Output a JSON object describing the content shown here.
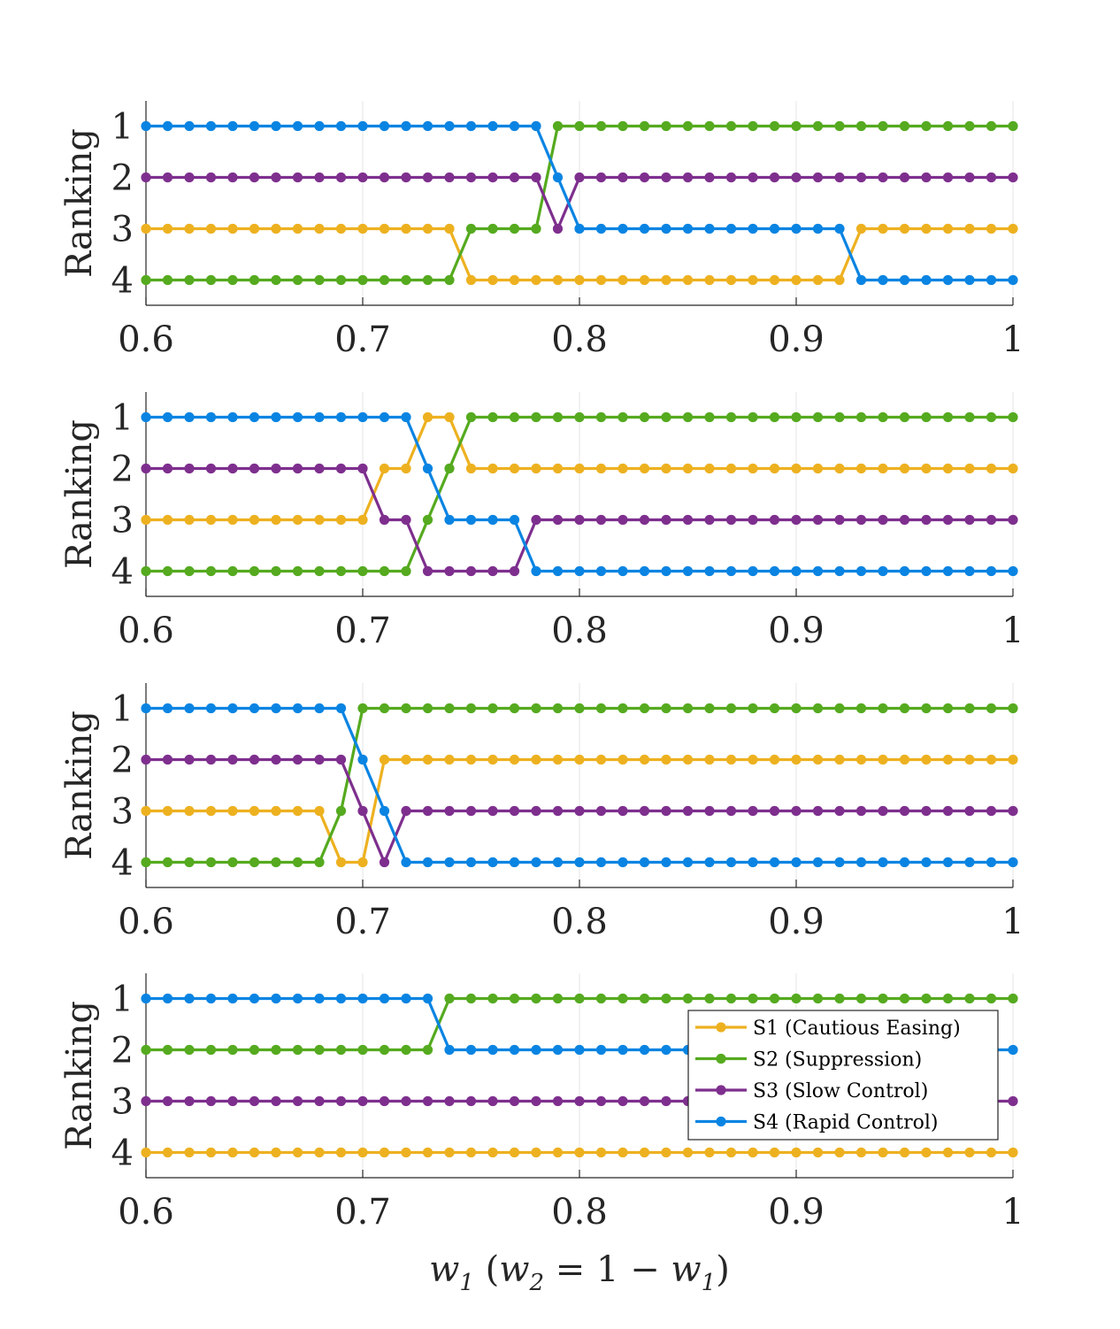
{
  "chart_data": {
    "type": "line",
    "x_start": 0.6,
    "x_step": 0.01,
    "x_count": 41,
    "xlim": [
      0.6,
      1.0
    ],
    "ylim": [
      0.5,
      4.5
    ],
    "y_reversed": true,
    "xticks": [
      "0.6",
      "0.7",
      "0.8",
      "0.9",
      "1"
    ],
    "yticks": [
      "1",
      "2",
      "3",
      "4"
    ],
    "ylabel": "Ranking",
    "xlabel": "w1 (w2 = 1 − w1)",
    "grid": "vertical",
    "legend_position": "inside right of bottom panel",
    "series_meta": [
      {
        "name": "S1 (Cautious Easing)",
        "color": "#EDB120"
      },
      {
        "name": "S2 (Suppression)",
        "color": "#55AA1F"
      },
      {
        "name": "S3 (Slow Control)",
        "color": "#7E2F8E"
      },
      {
        "name": "S4 (Rapid Control)",
        "color": "#0A84E2"
      }
    ],
    "panels": [
      {
        "series": [
          {
            "name": "S1 (Cautious Easing)",
            "values": [
              3,
              3,
              3,
              3,
              3,
              3,
              3,
              3,
              3,
              3,
              3,
              3,
              3,
              3,
              3,
              4,
              4,
              4,
              4,
              4,
              4,
              4,
              4,
              4,
              4,
              4,
              4,
              4,
              4,
              4,
              4,
              4,
              4,
              3,
              3,
              3,
              3,
              3,
              3,
              3,
              3
            ]
          },
          {
            "name": "S2 (Suppression)",
            "values": [
              4,
              4,
              4,
              4,
              4,
              4,
              4,
              4,
              4,
              4,
              4,
              4,
              4,
              4,
              4,
              3,
              3,
              3,
              3,
              1,
              1,
              1,
              1,
              1,
              1,
              1,
              1,
              1,
              1,
              1,
              1,
              1,
              1,
              1,
              1,
              1,
              1,
              1,
              1,
              1,
              1
            ]
          },
          {
            "name": "S3 (Slow Control)",
            "values": [
              2,
              2,
              2,
              2,
              2,
              2,
              2,
              2,
              2,
              2,
              2,
              2,
              2,
              2,
              2,
              2,
              2,
              2,
              2,
              3,
              2,
              2,
              2,
              2,
              2,
              2,
              2,
              2,
              2,
              2,
              2,
              2,
              2,
              2,
              2,
              2,
              2,
              2,
              2,
              2,
              2
            ]
          },
          {
            "name": "S4 (Rapid Control)",
            "values": [
              1,
              1,
              1,
              1,
              1,
              1,
              1,
              1,
              1,
              1,
              1,
              1,
              1,
              1,
              1,
              1,
              1,
              1,
              1,
              2,
              3,
              3,
              3,
              3,
              3,
              3,
              3,
              3,
              3,
              3,
              3,
              3,
              3,
              4,
              4,
              4,
              4,
              4,
              4,
              4,
              4
            ]
          }
        ]
      },
      {
        "series": [
          {
            "name": "S1 (Cautious Easing)",
            "values": [
              3,
              3,
              3,
              3,
              3,
              3,
              3,
              3,
              3,
              3,
              3,
              2,
              2,
              1,
              1,
              2,
              2,
              2,
              2,
              2,
              2,
              2,
              2,
              2,
              2,
              2,
              2,
              2,
              2,
              2,
              2,
              2,
              2,
              2,
              2,
              2,
              2,
              2,
              2,
              2,
              2
            ]
          },
          {
            "name": "S2 (Suppression)",
            "values": [
              4,
              4,
              4,
              4,
              4,
              4,
              4,
              4,
              4,
              4,
              4,
              4,
              4,
              3,
              2,
              1,
              1,
              1,
              1,
              1,
              1,
              1,
              1,
              1,
              1,
              1,
              1,
              1,
              1,
              1,
              1,
              1,
              1,
              1,
              1,
              1,
              1,
              1,
              1,
              1,
              1
            ]
          },
          {
            "name": "S3 (Slow Control)",
            "values": [
              2,
              2,
              2,
              2,
              2,
              2,
              2,
              2,
              2,
              2,
              2,
              3,
              3,
              4,
              4,
              4,
              4,
              4,
              3,
              3,
              3,
              3,
              3,
              3,
              3,
              3,
              3,
              3,
              3,
              3,
              3,
              3,
              3,
              3,
              3,
              3,
              3,
              3,
              3,
              3,
              3
            ]
          },
          {
            "name": "S4 (Rapid Control)",
            "values": [
              1,
              1,
              1,
              1,
              1,
              1,
              1,
              1,
              1,
              1,
              1,
              1,
              1,
              2,
              3,
              3,
              3,
              3,
              4,
              4,
              4,
              4,
              4,
              4,
              4,
              4,
              4,
              4,
              4,
              4,
              4,
              4,
              4,
              4,
              4,
              4,
              4,
              4,
              4,
              4,
              4
            ]
          }
        ]
      },
      {
        "series": [
          {
            "name": "S1 (Cautious Easing)",
            "values": [
              3,
              3,
              3,
              3,
              3,
              3,
              3,
              3,
              3,
              4,
              4,
              2,
              2,
              2,
              2,
              2,
              2,
              2,
              2,
              2,
              2,
              2,
              2,
              2,
              2,
              2,
              2,
              2,
              2,
              2,
              2,
              2,
              2,
              2,
              2,
              2,
              2,
              2,
              2,
              2,
              2
            ]
          },
          {
            "name": "S2 (Suppression)",
            "values": [
              4,
              4,
              4,
              4,
              4,
              4,
              4,
              4,
              4,
              3,
              1,
              1,
              1,
              1,
              1,
              1,
              1,
              1,
              1,
              1,
              1,
              1,
              1,
              1,
              1,
              1,
              1,
              1,
              1,
              1,
              1,
              1,
              1,
              1,
              1,
              1,
              1,
              1,
              1,
              1,
              1
            ]
          },
          {
            "name": "S3 (Slow Control)",
            "values": [
              2,
              2,
              2,
              2,
              2,
              2,
              2,
              2,
              2,
              2,
              3,
              4,
              3,
              3,
              3,
              3,
              3,
              3,
              3,
              3,
              3,
              3,
              3,
              3,
              3,
              3,
              3,
              3,
              3,
              3,
              3,
              3,
              3,
              3,
              3,
              3,
              3,
              3,
              3,
              3,
              3
            ]
          },
          {
            "name": "S4 (Rapid Control)",
            "values": [
              1,
              1,
              1,
              1,
              1,
              1,
              1,
              1,
              1,
              1,
              2,
              3,
              4,
              4,
              4,
              4,
              4,
              4,
              4,
              4,
              4,
              4,
              4,
              4,
              4,
              4,
              4,
              4,
              4,
              4,
              4,
              4,
              4,
              4,
              4,
              4,
              4,
              4,
              4,
              4,
              4
            ]
          }
        ]
      },
      {
        "series": [
          {
            "name": "S1 (Cautious Easing)",
            "values": [
              4,
              4,
              4,
              4,
              4,
              4,
              4,
              4,
              4,
              4,
              4,
              4,
              4,
              4,
              4,
              4,
              4,
              4,
              4,
              4,
              4,
              4,
              4,
              4,
              4,
              4,
              4,
              4,
              4,
              4,
              4,
              4,
              4,
              4,
              4,
              4,
              4,
              4,
              4,
              4,
              4
            ]
          },
          {
            "name": "S2 (Suppression)",
            "values": [
              2,
              2,
              2,
              2,
              2,
              2,
              2,
              2,
              2,
              2,
              2,
              2,
              2,
              2,
              1,
              1,
              1,
              1,
              1,
              1,
              1,
              1,
              1,
              1,
              1,
              1,
              1,
              1,
              1,
              1,
              1,
              1,
              1,
              1,
              1,
              1,
              1,
              1,
              1,
              1,
              1
            ]
          },
          {
            "name": "S3 (Slow Control)",
            "values": [
              3,
              3,
              3,
              3,
              3,
              3,
              3,
              3,
              3,
              3,
              3,
              3,
              3,
              3,
              3,
              3,
              3,
              3,
              3,
              3,
              3,
              3,
              3,
              3,
              3,
              3,
              3,
              3,
              3,
              3,
              3,
              3,
              3,
              3,
              3,
              3,
              3,
              3,
              3,
              3,
              3
            ]
          },
          {
            "name": "S4 (Rapid Control)",
            "values": [
              1,
              1,
              1,
              1,
              1,
              1,
              1,
              1,
              1,
              1,
              1,
              1,
              1,
              1,
              2,
              2,
              2,
              2,
              2,
              2,
              2,
              2,
              2,
              2,
              2,
              2,
              2,
              2,
              2,
              2,
              2,
              2,
              2,
              2,
              2,
              2,
              2,
              2,
              2,
              2,
              2
            ]
          }
        ]
      }
    ]
  }
}
